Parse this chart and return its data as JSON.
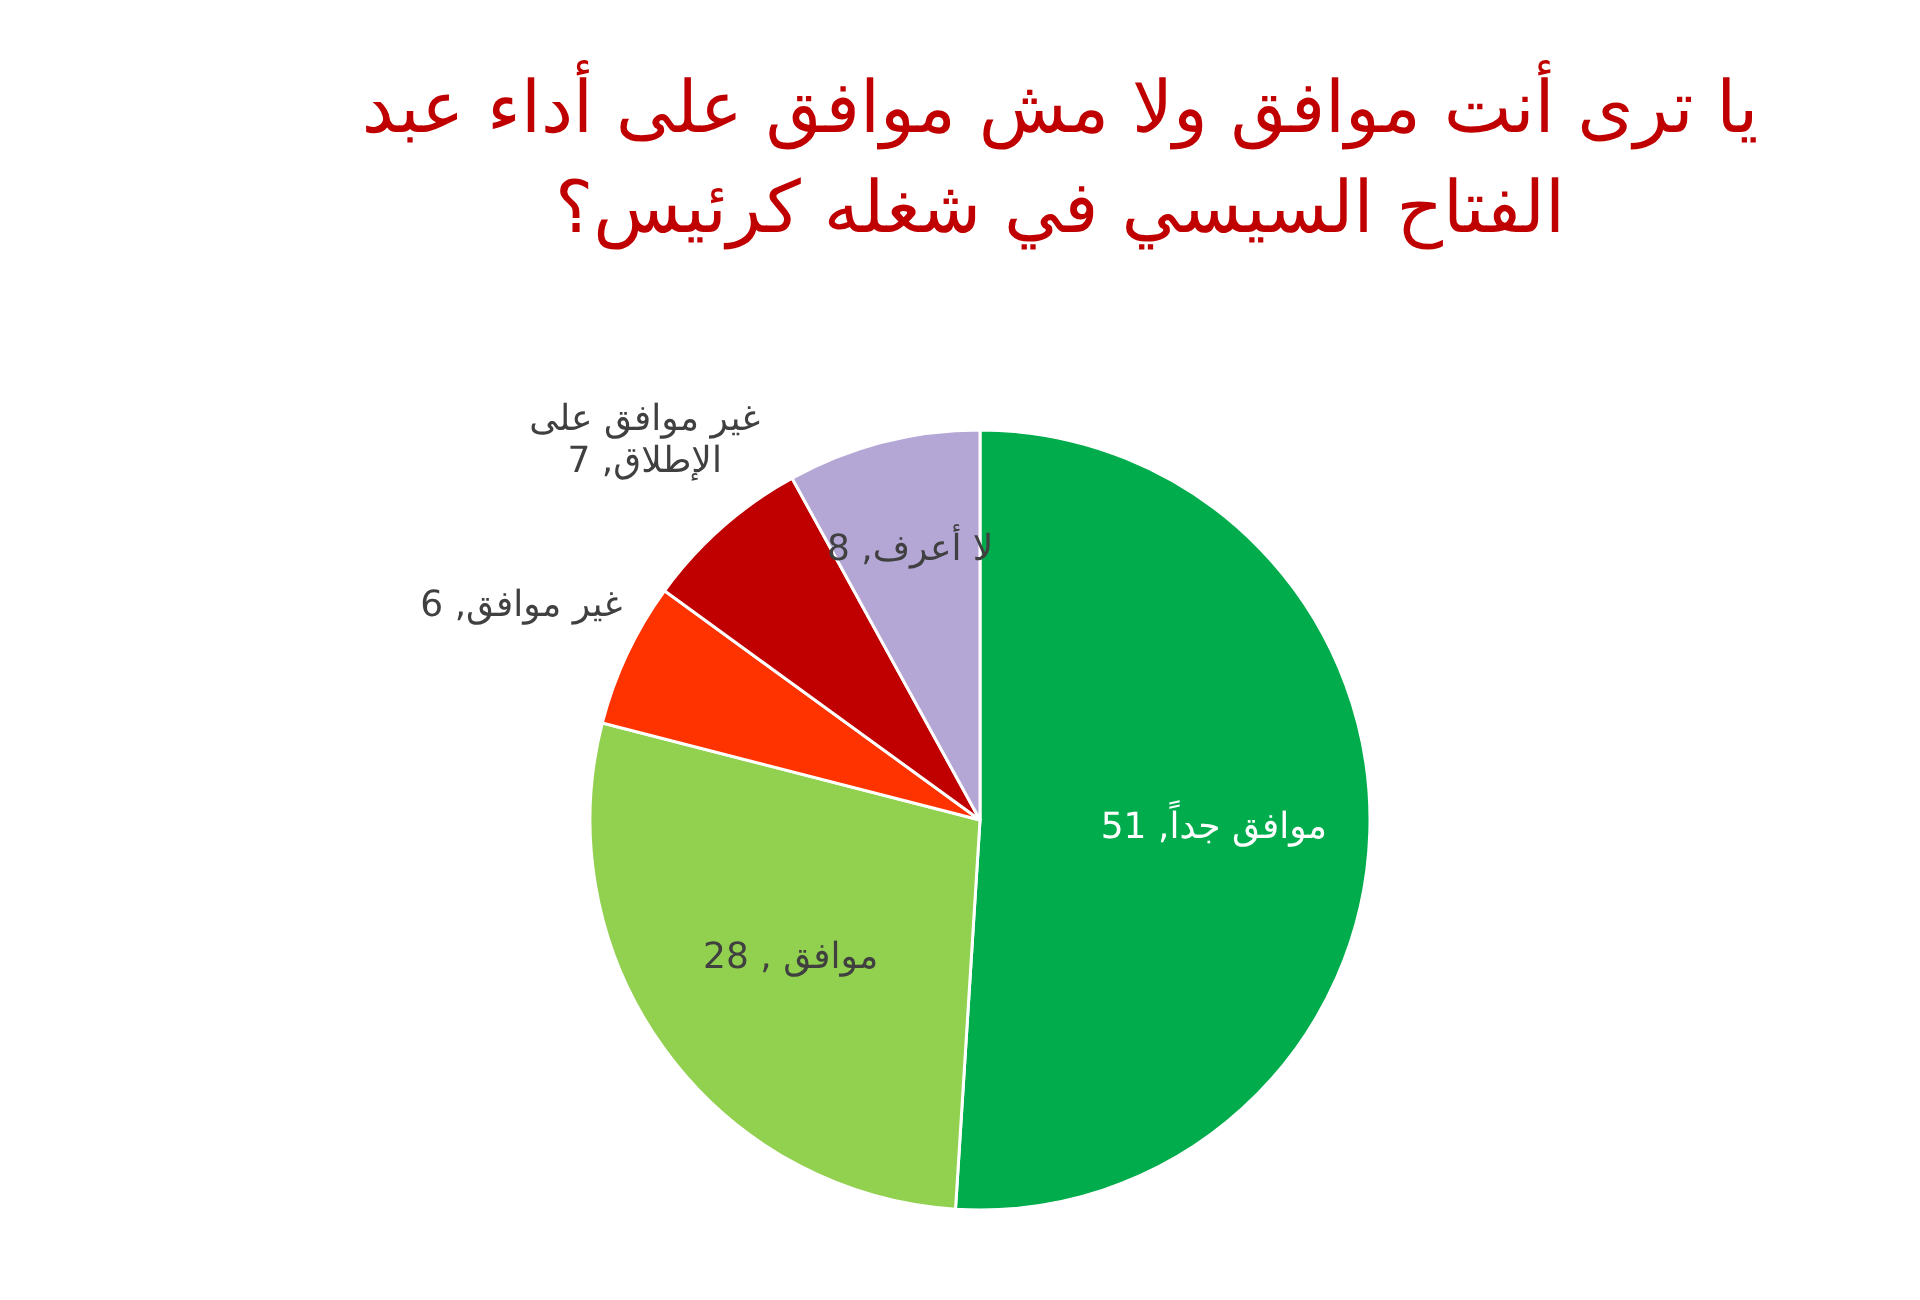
{
  "chart_data": {
    "type": "pie",
    "title": "يا ترى أنت موافق ولا مش موافق على أداء عبد الفتاح السيسي في شغله كرئيس؟",
    "categories": [
      "موافق جداً",
      "موافق",
      "غير موافق",
      "غير موافق على الإطلاق",
      "لا أعرف"
    ],
    "values": [
      51,
      28,
      6,
      7,
      8
    ],
    "colors": [
      "#00ac4c",
      "#92d050",
      "#ff3300",
      "#c00000",
      "#b4a7d6"
    ],
    "value_labels": [
      ", 51",
      " , 28",
      ", 6",
      ", 7",
      ", 8"
    ]
  }
}
